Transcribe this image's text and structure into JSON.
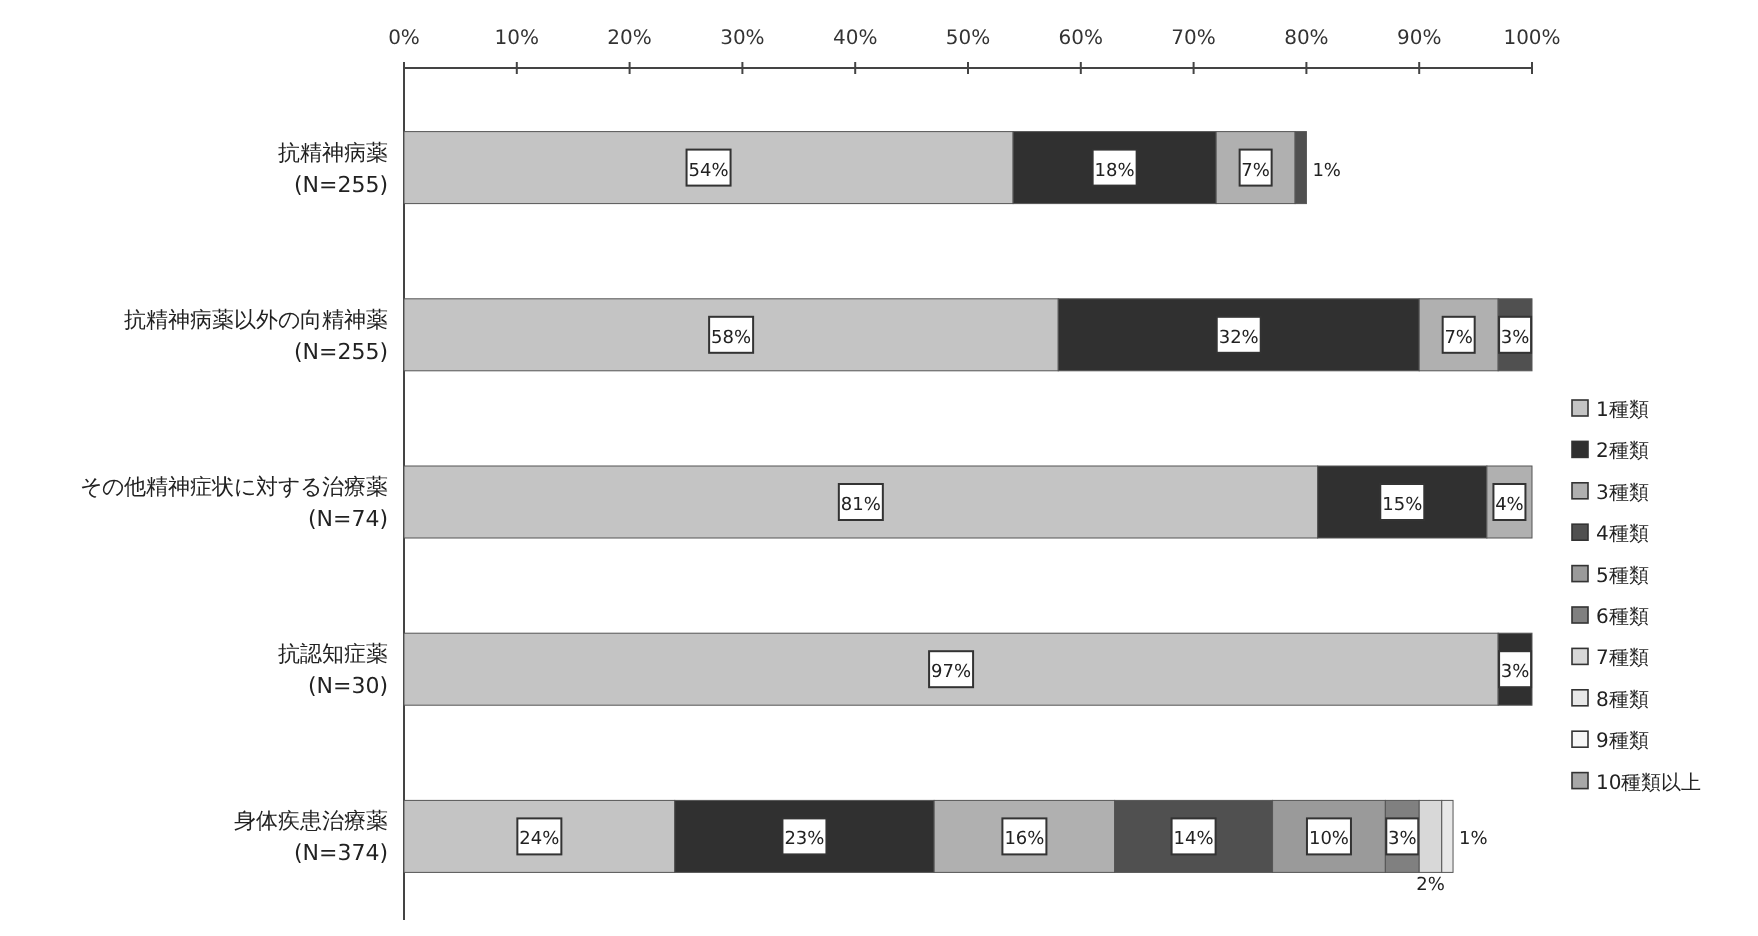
{
  "chart_data": {
    "type": "bar",
    "orientation": "horizontal",
    "stacked": true,
    "categories": [
      "抗精神病薬\n(N=255)",
      "抗精神病薬以外の向精神薬\n(N=255)",
      "その他精神症状に対する治療薬\n(N=74)",
      "抗認知症薬\n(N=30)",
      "身体疾患治療薬\n(N=374)"
    ],
    "xlim": [
      0,
      100
    ],
    "xticks": [
      {
        "value": 0,
        "label": "0%"
      },
      {
        "value": 10,
        "label": "10%"
      },
      {
        "value": 20,
        "label": "20%"
      },
      {
        "value": 30,
        "label": "30%"
      },
      {
        "value": 40,
        "label": "40%"
      },
      {
        "value": 50,
        "label": "50%"
      },
      {
        "value": 60,
        "label": "60%"
      },
      {
        "value": 70,
        "label": "70%"
      },
      {
        "value": 80,
        "label": "80%"
      },
      {
        "value": 90,
        "label": "90%"
      },
      {
        "value": 100,
        "label": "100%"
      }
    ],
    "legend": "right",
    "grid": false,
    "series": [
      {
        "name": "1種類",
        "color": "#c4c4c4",
        "values": [
          54,
          58,
          81,
          97,
          24
        ],
        "value_labels": [
          "54%",
          "58%",
          "81%",
          "97%",
          "24%"
        ]
      },
      {
        "name": "2種類",
        "color": "#303030",
        "values": [
          18,
          32,
          15,
          3,
          23
        ],
        "value_labels": [
          "18%",
          "32%",
          "15%",
          "3%",
          "23%"
        ]
      },
      {
        "name": "3種類",
        "color": "#b0b0b0",
        "values": [
          7,
          7,
          4,
          null,
          16
        ],
        "value_labels": [
          "7%",
          "7%",
          "4%",
          null,
          "16%"
        ]
      },
      {
        "name": "4種類",
        "color": "#505050",
        "values": [
          1,
          3,
          null,
          null,
          14
        ],
        "value_labels": [
          "1%",
          "3%",
          null,
          null,
          "14%"
        ]
      },
      {
        "name": "5種類",
        "color": "#9a9a9a",
        "values": [
          null,
          null,
          null,
          null,
          10
        ],
        "value_labels": [
          null,
          null,
          null,
          null,
          "10%"
        ]
      },
      {
        "name": "6種類",
        "color": "#808080",
        "values": [
          null,
          null,
          null,
          null,
          3
        ],
        "value_labels": [
          null,
          null,
          null,
          null,
          "3%"
        ]
      },
      {
        "name": "7種類",
        "color": "#d8d8d8",
        "values": [
          null,
          null,
          null,
          null,
          2
        ],
        "value_labels": [
          null,
          null,
          null,
          null,
          "2%"
        ]
      },
      {
        "name": "8種類",
        "color": "#e8e8e8",
        "values": [
          null,
          null,
          null,
          null,
          1
        ],
        "value_labels": [
          null,
          null,
          null,
          null,
          "1%"
        ]
      },
      {
        "name": "9種類",
        "color": "#f6f6f6",
        "values": [
          null,
          null,
          null,
          null,
          null
        ]
      },
      {
        "name": "10種類以上",
        "color": "#a8a8a8",
        "values": [
          null,
          null,
          null,
          null,
          null
        ]
      }
    ]
  }
}
